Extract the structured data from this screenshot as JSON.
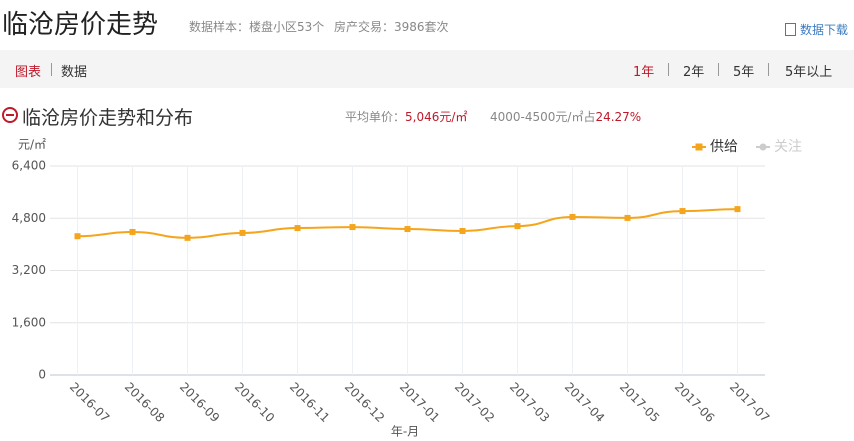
{
  "header": {
    "title": "临沧房价走势",
    "sample": "数据样本：楼盘小区53个",
    "trades": "房产交易：3986套次",
    "download": "数据下载"
  },
  "tabs": {
    "left": [
      "图表",
      "数据"
    ],
    "right": [
      "1年",
      "2年",
      "5年",
      "5年以上"
    ]
  },
  "section": {
    "title": "临沧房价走势和分布",
    "avg_label": "平均单价：",
    "avg_value": "5,046元/㎡",
    "range_label": "4000-4500元/㎡占",
    "range_value": "24.27%"
  },
  "chart_data": {
    "type": "line",
    "y_unit": "元/㎡",
    "xlabel": "年-月",
    "categories": [
      "2016-07",
      "2016-08",
      "2016-09",
      "2016-10",
      "2016-11",
      "2016-12",
      "2017-01",
      "2017-02",
      "2017-03",
      "2017-04",
      "2017-05",
      "2017-06",
      "2017-07"
    ],
    "series": [
      {
        "name": "供给",
        "color": "#f5a51c",
        "values": [
          4250,
          4380,
          4200,
          4350,
          4500,
          4530,
          4470,
          4410,
          4560,
          4840,
          4810,
          5020,
          5080
        ]
      },
      {
        "name": "关注",
        "color": "#cccccc",
        "hidden": true
      }
    ],
    "ylim": [
      0,
      6400
    ],
    "yticks": [
      0,
      {
        "value": 1600,
        "label": "1,600"
      },
      {
        "value": 3200,
        "label": "3,200"
      },
      {
        "value": 4800,
        "label": "4,800"
      },
      {
        "value": 6400,
        "label": "6,400"
      }
    ],
    "grid": true
  }
}
